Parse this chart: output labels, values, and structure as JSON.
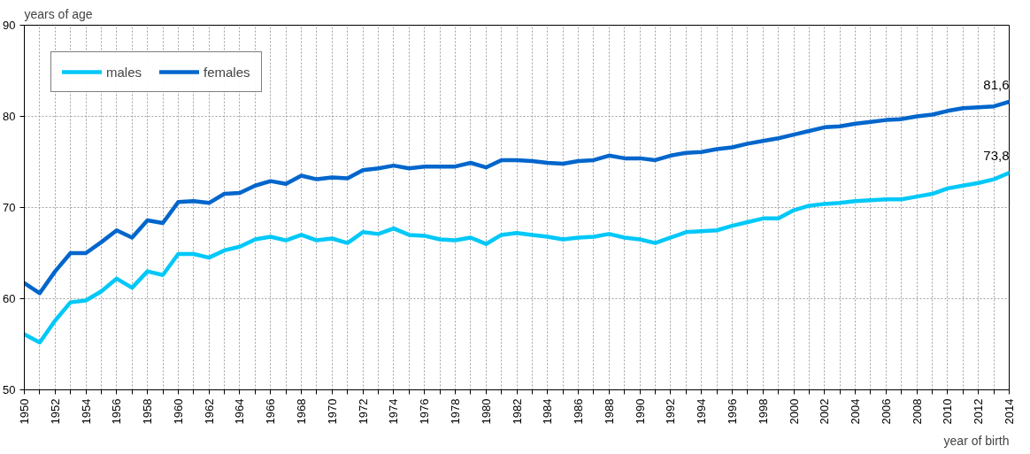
{
  "chart_data": {
    "type": "line",
    "xlabel": "year of birth",
    "ylabel": "years of age",
    "x": [
      1950,
      1951,
      1952,
      1953,
      1954,
      1955,
      1956,
      1957,
      1958,
      1959,
      1960,
      1961,
      1962,
      1963,
      1964,
      1965,
      1966,
      1967,
      1968,
      1969,
      1970,
      1971,
      1972,
      1973,
      1974,
      1975,
      1976,
      1977,
      1978,
      1979,
      1980,
      1981,
      1982,
      1983,
      1984,
      1985,
      1986,
      1987,
      1988,
      1989,
      1990,
      1991,
      1992,
      1993,
      1994,
      1995,
      1996,
      1997,
      1998,
      1999,
      2000,
      2001,
      2002,
      2003,
      2004,
      2005,
      2006,
      2007,
      2008,
      2009,
      2010,
      2011,
      2012,
      2013,
      2014
    ],
    "series": [
      {
        "name": "males",
        "color": "#00c8f8",
        "values": [
          56.1,
          55.2,
          57.6,
          59.6,
          59.8,
          60.8,
          62.2,
          61.2,
          63.0,
          62.6,
          64.9,
          64.9,
          64.5,
          65.3,
          65.7,
          66.5,
          66.8,
          66.4,
          67.0,
          66.4,
          66.6,
          66.1,
          67.3,
          67.1,
          67.7,
          67.0,
          66.9,
          66.5,
          66.4,
          66.7,
          66.0,
          67.0,
          67.2,
          67.0,
          66.8,
          66.5,
          66.7,
          66.8,
          67.1,
          66.7,
          66.5,
          66.1,
          66.7,
          67.3,
          67.4,
          67.5,
          68.0,
          68.4,
          68.8,
          68.8,
          69.7,
          70.2,
          70.4,
          70.5,
          70.7,
          70.8,
          70.9,
          70.9,
          71.2,
          71.5,
          72.1,
          72.4,
          72.7,
          73.1,
          73.8
        ],
        "value_labels": [
          null,
          null,
          null,
          null,
          null,
          null,
          null,
          null,
          null,
          null,
          null,
          null,
          null,
          null,
          null,
          null,
          null,
          null,
          null,
          null,
          null,
          null,
          null,
          null,
          null,
          null,
          null,
          null,
          null,
          null,
          null,
          null,
          null,
          null,
          null,
          null,
          null,
          null,
          null,
          null,
          null,
          null,
          null,
          null,
          null,
          null,
          null,
          null,
          null,
          null,
          null,
          null,
          null,
          null,
          null,
          null,
          null,
          null,
          null,
          null,
          null,
          null,
          null,
          null,
          "73,8"
        ]
      },
      {
        "name": "females",
        "color": "#0066cc",
        "values": [
          61.7,
          60.6,
          63.0,
          65.0,
          65.0,
          66.2,
          67.5,
          66.7,
          68.6,
          68.3,
          70.6,
          70.7,
          70.5,
          71.5,
          71.6,
          72.4,
          72.9,
          72.6,
          73.5,
          73.1,
          73.3,
          73.2,
          74.1,
          74.3,
          74.6,
          74.3,
          74.5,
          74.5,
          74.5,
          74.9,
          74.4,
          75.2,
          75.2,
          75.1,
          74.9,
          74.8,
          75.1,
          75.2,
          75.7,
          75.4,
          75.4,
          75.2,
          75.7,
          76.0,
          76.1,
          76.4,
          76.6,
          77.0,
          77.3,
          77.6,
          78.0,
          78.4,
          78.8,
          78.9,
          79.2,
          79.4,
          79.6,
          79.7,
          80.0,
          80.2,
          80.6,
          80.9,
          81.0,
          81.1,
          81.6
        ],
        "value_labels": [
          null,
          null,
          null,
          null,
          null,
          null,
          null,
          null,
          null,
          null,
          null,
          null,
          null,
          null,
          null,
          null,
          null,
          null,
          null,
          null,
          null,
          null,
          null,
          null,
          null,
          null,
          null,
          null,
          null,
          null,
          null,
          null,
          null,
          null,
          null,
          null,
          null,
          null,
          null,
          null,
          null,
          null,
          null,
          null,
          null,
          null,
          null,
          null,
          null,
          null,
          null,
          null,
          null,
          null,
          null,
          null,
          null,
          null,
          null,
          null,
          null,
          null,
          null,
          null,
          "81,6"
        ]
      }
    ],
    "xlim": [
      1950,
      2014
    ],
    "ylim": [
      50,
      90
    ],
    "yticks": [
      50,
      60,
      70,
      80,
      90
    ],
    "xticks": [
      1950,
      {
        "value": 1951,
        "label": null
      },
      1952,
      {
        "value": 1953,
        "label": null
      },
      1954,
      {
        "value": 1955,
        "label": null
      },
      1956,
      {
        "value": 1957,
        "label": null
      },
      1958,
      {
        "value": 1959,
        "label": null
      },
      1960,
      {
        "value": 1961,
        "label": null
      },
      1962,
      {
        "value": 1963,
        "label": null
      },
      1964,
      {
        "value": 1965,
        "label": null
      },
      1966,
      {
        "value": 1967,
        "label": null
      },
      1968,
      {
        "value": 1969,
        "label": null
      },
      1970,
      {
        "value": 1971,
        "label": null
      },
      1972,
      {
        "value": 1973,
        "label": null
      },
      1974,
      {
        "value": 1975,
        "label": null
      },
      1976,
      {
        "value": 1977,
        "label": null
      },
      1978,
      {
        "value": 1979,
        "label": null
      },
      1980,
      {
        "value": 1981,
        "label": null
      },
      1982,
      {
        "value": 1983,
        "label": null
      },
      1984,
      {
        "value": 1985,
        "label": null
      },
      1986,
      {
        "value": 1987,
        "label": null
      },
      1988,
      {
        "value": 1989,
        "label": null
      },
      1990,
      {
        "value": 1991,
        "label": null
      },
      1992,
      {
        "value": 1993,
        "label": null
      },
      1994,
      {
        "value": 1995,
        "label": null
      },
      1996,
      {
        "value": 1997,
        "label": null
      },
      1998,
      {
        "value": 1999,
        "label": null
      },
      2000,
      {
        "value": 2001,
        "label": null
      },
      2002,
      {
        "value": 2003,
        "label": null
      },
      2004,
      {
        "value": 2005,
        "label": null
      },
      2006,
      {
        "value": 2007,
        "label": null
      },
      2008,
      {
        "value": 2009,
        "label": null
      },
      2010,
      {
        "value": 2011,
        "label": null
      },
      2012,
      {
        "value": 2013,
        "label": null
      },
      2014
    ],
    "grid": true,
    "legend": "top left",
    "marker": "none",
    "line_style": "solid"
  }
}
